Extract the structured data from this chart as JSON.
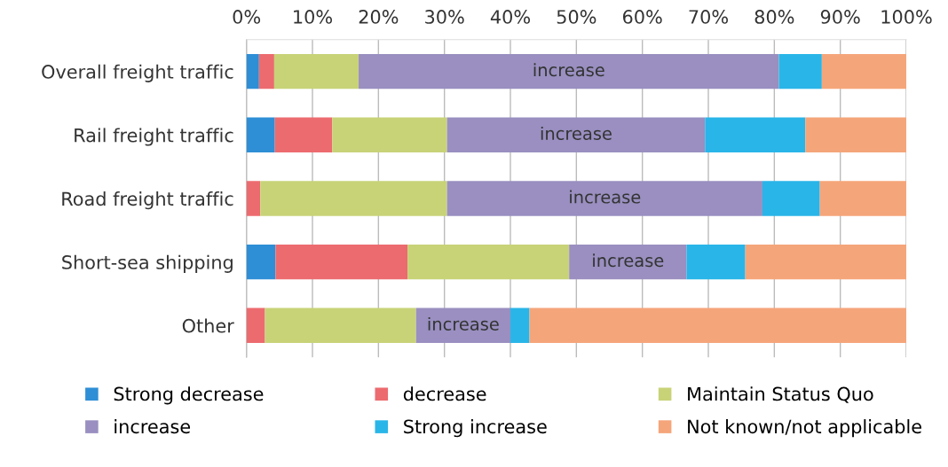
{
  "chart_data": {
    "type": "bar",
    "orientation": "horizontal",
    "stacked": true,
    "categories": [
      "Overall freight traffic",
      "Rail freight traffic",
      "Road freight traffic",
      "Short-sea shipping",
      "Other"
    ],
    "series": [
      {
        "name": "Strong decrease",
        "color": "#2e8fd6",
        "values": [
          1.9,
          4.3,
          0,
          4.4,
          0
        ]
      },
      {
        "name": "decrease",
        "color": "#ec6b6f",
        "values": [
          2.3,
          8.7,
          2.1,
          20.0,
          2.8
        ]
      },
      {
        "name": "Maintain Status Quo",
        "color": "#c8d378",
        "values": [
          12.8,
          17.4,
          28.3,
          24.5,
          22.9
        ]
      },
      {
        "name": "increase",
        "color": "#9a8fc0",
        "values": [
          63.7,
          39.1,
          47.8,
          17.8,
          14.3
        ],
        "value_labels": [
          "increase",
          "increase",
          "increase",
          "increase",
          "increase"
        ]
      },
      {
        "name": "Strong increase",
        "color": "#29b5e8",
        "values": [
          6.5,
          15.2,
          8.7,
          8.9,
          2.9
        ]
      },
      {
        "name": "Not known/not applicable",
        "color": "#f5a57a",
        "values": [
          12.8,
          15.3,
          13.1,
          24.4,
          57.1
        ]
      }
    ],
    "xlim": [
      0,
      100
    ],
    "xticks": [
      {
        "value": 0,
        "label": "0%"
      },
      {
        "value": 10,
        "label": "10%"
      },
      {
        "value": 20,
        "label": "20%"
      },
      {
        "value": 30,
        "label": "30%"
      },
      {
        "value": 40,
        "label": "40%"
      },
      {
        "value": 50,
        "label": "50%"
      },
      {
        "value": 60,
        "label": "60%"
      },
      {
        "value": 70,
        "label": "70%"
      },
      {
        "value": 80,
        "label": "80%"
      },
      {
        "value": 90,
        "label": "90%"
      },
      {
        "value": 100,
        "label": "100%"
      }
    ],
    "grid": "x",
    "legend": "bottom"
  }
}
